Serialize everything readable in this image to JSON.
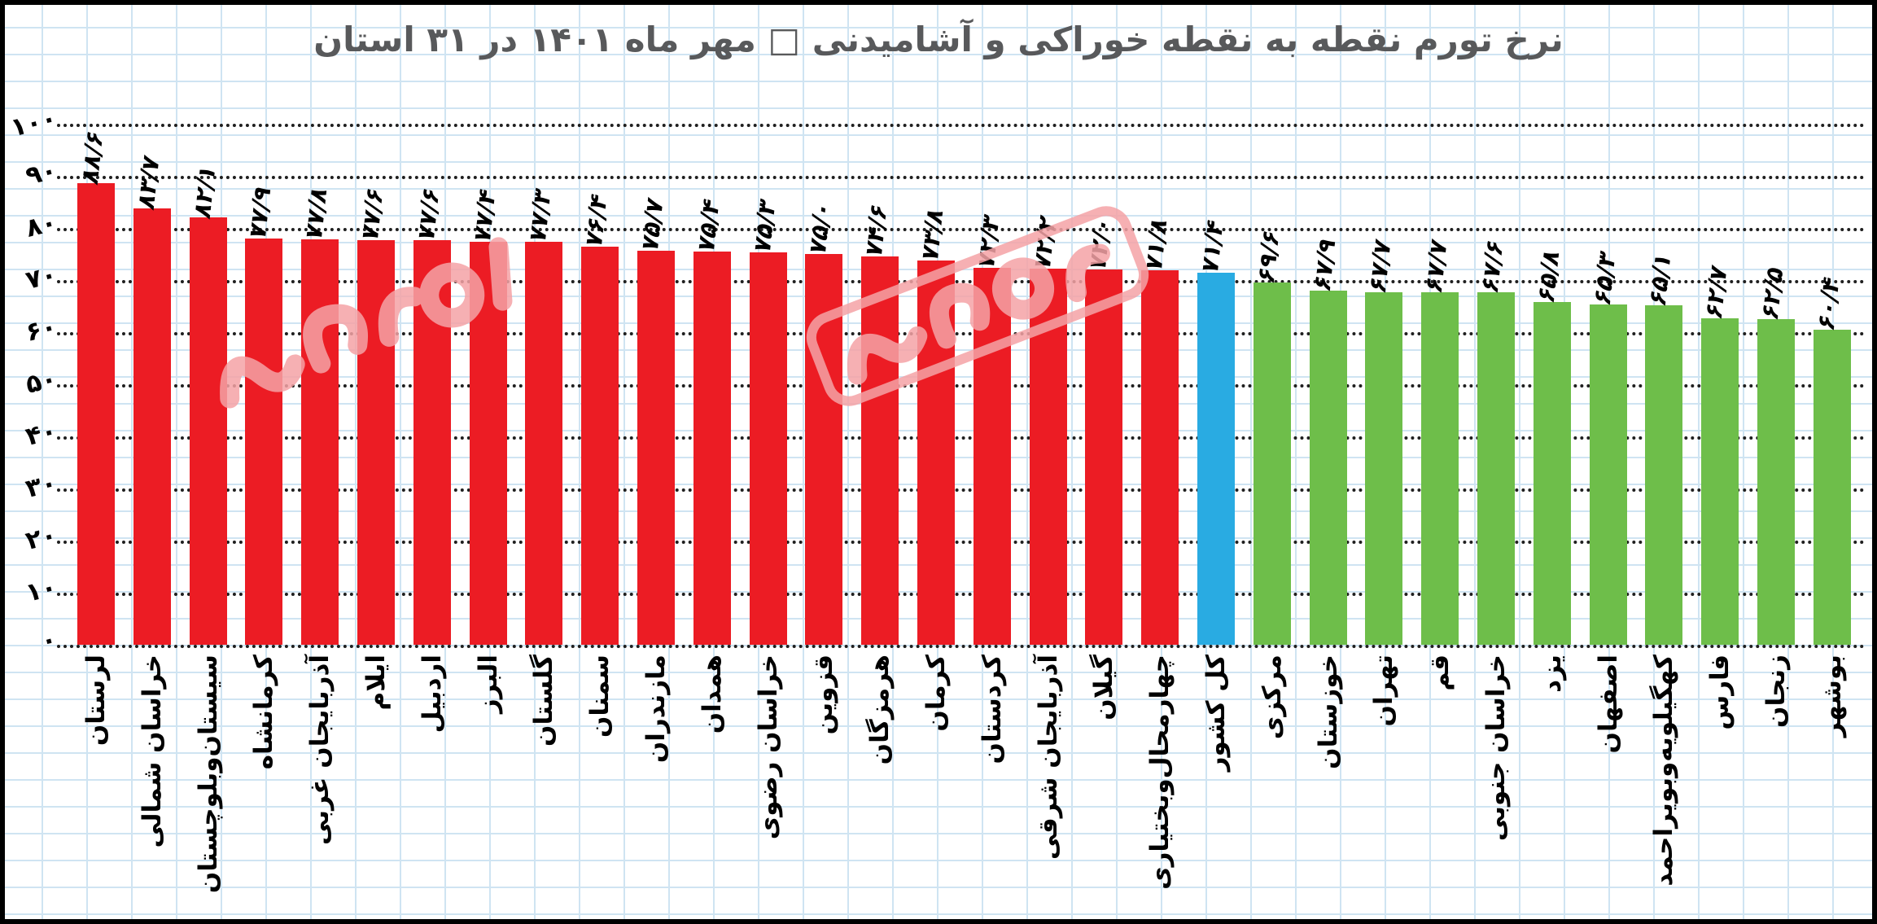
{
  "title": "نرخ تورم نقطه به نقطه خوراکی و آشامیدنی □ مهر ماه ۱۴۰۱ در ۳۱ استان",
  "colors": {
    "bar_above_national": "#EC1C24",
    "bar_national": "#29ABE2",
    "bar_below_national": "#6EBE4A",
    "grid_paper": "#CFE4F2",
    "dotted_gridline": "#1F1F1F",
    "title_text": "#58595B",
    "label_text": "#000000",
    "watermark_pink": "#F5A3A6"
  },
  "y_axis": {
    "tick_labels_fa": [
      "۰",
      "۱۰",
      "۲۰",
      "۳۰",
      "۴۰",
      "۵۰",
      "۶۰",
      "۷۰",
      "۸۰",
      "۹۰",
      "۱۰۰"
    ],
    "tick_values": [
      0,
      10,
      20,
      30,
      40,
      50,
      60,
      70,
      80,
      90,
      100
    ]
  },
  "chart_data": {
    "type": "bar",
    "title": "نرخ تورم نقطه به نقطه خوراکی و آشامیدنی □ مهر ماه ۱۴۰۱ در ۳۱ استان",
    "xlabel": "",
    "ylabel": "",
    "ylim": [
      0,
      100
    ],
    "yticks": [
      0,
      10,
      20,
      30,
      40,
      50,
      60,
      70,
      80,
      90,
      100
    ],
    "grid": true,
    "legend": false,
    "categories": [
      "لرستان",
      "خراسان شمالی",
      "سیستان‌وبلوچستان",
      "کرمانشاه",
      "آذربایجان غربی",
      "ایلام",
      "اردبیل",
      "البرز",
      "گلستان",
      "سمنان",
      "مازندران",
      "همدان",
      "خراسان رضوی",
      "قزوین",
      "هرمزگان",
      "کرمان",
      "کردستان",
      "آذربایجان شرقی",
      "گیلان",
      "چهارمحال‌وبختیاری",
      "کل کشور",
      "مرکزی",
      "خوزستان",
      "تهران",
      "قم",
      "خراسان جنوبی",
      "یزد",
      "اصفهان",
      "کهگیلویه‌وبویراحمد",
      "فارس",
      "زنجان",
      "بوشهر"
    ],
    "values": [
      88.6,
      83.7,
      82.1,
      77.9,
      77.8,
      77.6,
      77.6,
      77.4,
      77.3,
      76.4,
      75.7,
      75.4,
      75.3,
      75.0,
      74.6,
      73.8,
      72.3,
      72.2,
      72.0,
      71.8,
      71.4,
      69.6,
      67.9,
      67.7,
      67.7,
      67.6,
      65.8,
      65.3,
      65.1,
      62.7,
      62.5,
      60.4
    ],
    "bars": [
      {
        "name_fa": "لرستان",
        "value": 88.6,
        "value_label_fa": "۸۸/۶",
        "group": "above"
      },
      {
        "name_fa": "خراسان شمالی",
        "value": 83.7,
        "value_label_fa": "۸۳/۷",
        "group": "above"
      },
      {
        "name_fa": "سیستان‌وبلوچستان",
        "value": 82.1,
        "value_label_fa": "۸۲/۱",
        "group": "above"
      },
      {
        "name_fa": "کرمانشاه",
        "value": 77.9,
        "value_label_fa": "۷۷/۹",
        "group": "above"
      },
      {
        "name_fa": "آذربایجان غربی",
        "value": 77.8,
        "value_label_fa": "۷۷/۸",
        "group": "above"
      },
      {
        "name_fa": "ایلام",
        "value": 77.6,
        "value_label_fa": "۷۷/۶",
        "group": "above"
      },
      {
        "name_fa": "اردبیل",
        "value": 77.6,
        "value_label_fa": "۷۷/۶",
        "group": "above"
      },
      {
        "name_fa": "البرز",
        "value": 77.4,
        "value_label_fa": "۷۷/۴",
        "group": "above"
      },
      {
        "name_fa": "گلستان",
        "value": 77.3,
        "value_label_fa": "۷۷/۳",
        "group": "above"
      },
      {
        "name_fa": "سمنان",
        "value": 76.4,
        "value_label_fa": "۷۶/۴",
        "group": "above"
      },
      {
        "name_fa": "مازندران",
        "value": 75.7,
        "value_label_fa": "۷۵/۷",
        "group": "above"
      },
      {
        "name_fa": "همدان",
        "value": 75.4,
        "value_label_fa": "۷۵/۴",
        "group": "above"
      },
      {
        "name_fa": "خراسان رضوی",
        "value": 75.3,
        "value_label_fa": "۷۵/۳",
        "group": "above"
      },
      {
        "name_fa": "قزوین",
        "value": 75.0,
        "value_label_fa": "۷۵/۰",
        "group": "above"
      },
      {
        "name_fa": "هرمزگان",
        "value": 74.6,
        "value_label_fa": "۷۴/۶",
        "group": "above"
      },
      {
        "name_fa": "کرمان",
        "value": 73.8,
        "value_label_fa": "۷۳/۸",
        "group": "above"
      },
      {
        "name_fa": "کردستان",
        "value": 72.3,
        "value_label_fa": "۷۲/۳",
        "group": "above"
      },
      {
        "name_fa": "آذربایجان شرقی",
        "value": 72.2,
        "value_label_fa": "۷۲/۲",
        "group": "above"
      },
      {
        "name_fa": "گیلان",
        "value": 72.0,
        "value_label_fa": "۷۲/۰",
        "group": "above"
      },
      {
        "name_fa": "چهارمحال‌وبختیاری",
        "value": 71.8,
        "value_label_fa": "۷۱/۸",
        "group": "above"
      },
      {
        "name_fa": "کل کشور",
        "value": 71.4,
        "value_label_fa": "۷۱/۴",
        "group": "national"
      },
      {
        "name_fa": "مرکزی",
        "value": 69.6,
        "value_label_fa": "۶۹/۶",
        "group": "below"
      },
      {
        "name_fa": "خوزستان",
        "value": 67.9,
        "value_label_fa": "۶۷/۹",
        "group": "below"
      },
      {
        "name_fa": "تهران",
        "value": 67.7,
        "value_label_fa": "۶۷/۷",
        "group": "below"
      },
      {
        "name_fa": "قم",
        "value": 67.7,
        "value_label_fa": "۶۷/۷",
        "group": "below"
      },
      {
        "name_fa": "خراسان جنوبی",
        "value": 67.6,
        "value_label_fa": "۶۷/۶",
        "group": "below"
      },
      {
        "name_fa": "یزد",
        "value": 65.8,
        "value_label_fa": "۶۵/۸",
        "group": "below"
      },
      {
        "name_fa": "اصفهان",
        "value": 65.3,
        "value_label_fa": "۶۵/۳",
        "group": "below"
      },
      {
        "name_fa": "کهگیلویه‌وبویراحمد",
        "value": 65.1,
        "value_label_fa": "۶۵/۱",
        "group": "below"
      },
      {
        "name_fa": "فارس",
        "value": 62.7,
        "value_label_fa": "۶۲/۷",
        "group": "below"
      },
      {
        "name_fa": "زنجان",
        "value": 62.5,
        "value_label_fa": "۶۲/۵",
        "group": "below"
      },
      {
        "name_fa": "بوشهر",
        "value": 60.4,
        "value_label_fa": "۶۰/۴",
        "group": "below"
      }
    ]
  }
}
